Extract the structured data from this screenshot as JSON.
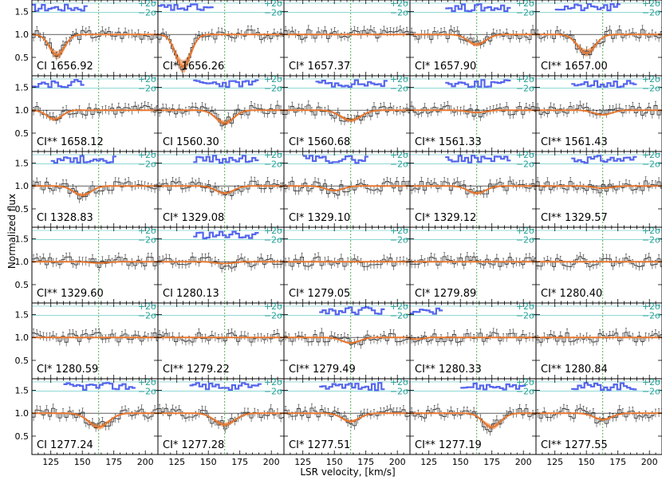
{
  "chart_data": {
    "type": "line",
    "ylabel": "Normalized flux",
    "xlabel": "LSR velocity, [km/s]",
    "xlim": [
      110,
      210
    ],
    "ylim": [
      0.1,
      1.75
    ],
    "x_ticks": [
      125,
      150,
      175,
      200
    ],
    "y_ticks": [
      0.5,
      1.0,
      1.5
    ],
    "x_tick_labels": [
      "125",
      "150",
      "175",
      "200"
    ],
    "y_tick_labels": [
      "0.5",
      "1.0",
      "1.5"
    ],
    "sigma_labels": [
      "+2σ",
      "−2σ"
    ],
    "component_velocity": 163,
    "grid": "off",
    "panels": [
      {
        "label": "CI 1656.92",
        "depth": 0.45,
        "center": 130,
        "width": 6
      },
      {
        "label": "CI* 1656.26",
        "depth": 0.7,
        "center": 130,
        "width": 6
      },
      {
        "label": "CI* 1657.37",
        "depth": 0.0,
        "center": 150,
        "width": 6
      },
      {
        "label": "CI* 1657.90",
        "depth": 0.22,
        "center": 163,
        "width": 7
      },
      {
        "label": "CI** 1657.00",
        "depth": 0.4,
        "center": 150,
        "width": 7
      },
      {
        "label": "CI** 1658.12",
        "depth": 0.2,
        "center": 128,
        "width": 6
      },
      {
        "label": "CI 1560.30",
        "depth": 0.28,
        "center": 163,
        "width": 7
      },
      {
        "label": "CI* 1560.68",
        "depth": 0.22,
        "center": 163,
        "width": 8
      },
      {
        "label": "CI** 1561.33",
        "depth": 0.05,
        "center": 163,
        "width": 7
      },
      {
        "label": "CI** 1561.43",
        "depth": 0.1,
        "center": 163,
        "width": 7
      },
      {
        "label": "CI 1328.83",
        "depth": 0.2,
        "center": 150,
        "width": 7
      },
      {
        "label": "CI* 1329.08",
        "depth": 0.16,
        "center": 163,
        "width": 7
      },
      {
        "label": "CI* 1329.10",
        "depth": 0.1,
        "center": 150,
        "width": 7
      },
      {
        "label": "CI* 1329.12",
        "depth": 0.16,
        "center": 163,
        "width": 7
      },
      {
        "label": "CI** 1329.57",
        "depth": 0.05,
        "center": 163,
        "width": 7
      },
      {
        "label": "CI** 1329.60",
        "depth": 0.03,
        "center": 163,
        "width": 7
      },
      {
        "label": "CI 1280.13",
        "depth": 0.04,
        "center": 163,
        "width": 7
      },
      {
        "label": "CI* 1279.05",
        "depth": 0.0,
        "center": 163,
        "width": 7
      },
      {
        "label": "CI* 1279.89",
        "depth": 0.0,
        "center": 163,
        "width": 7
      },
      {
        "label": "CI* 1280.40",
        "depth": 0.0,
        "center": 163,
        "width": 7
      },
      {
        "label": "CI* 1280.59",
        "depth": 0.0,
        "center": 163,
        "width": 7
      },
      {
        "label": "CI** 1279.22",
        "depth": 0.0,
        "center": 163,
        "width": 7
      },
      {
        "label": "CI** 1279.49",
        "depth": 0.12,
        "center": 163,
        "width": 7
      },
      {
        "label": "CI** 1280.33",
        "depth": 0.04,
        "center": 115,
        "width": 5
      },
      {
        "label": "CI** 1280.84",
        "depth": 0.0,
        "center": 163,
        "width": 7
      },
      {
        "label": "CI 1277.24",
        "depth": 0.3,
        "center": 163,
        "width": 8
      },
      {
        "label": "CI* 1277.28",
        "depth": 0.25,
        "center": 163,
        "width": 8
      },
      {
        "label": "CI* 1277.51",
        "depth": 0.18,
        "center": 163,
        "width": 7
      },
      {
        "label": "CI** 1277.19",
        "depth": 0.3,
        "center": 175,
        "width": 7
      },
      {
        "label": "CI** 1277.55",
        "depth": 0.14,
        "center": 163,
        "width": 7
      }
    ]
  }
}
